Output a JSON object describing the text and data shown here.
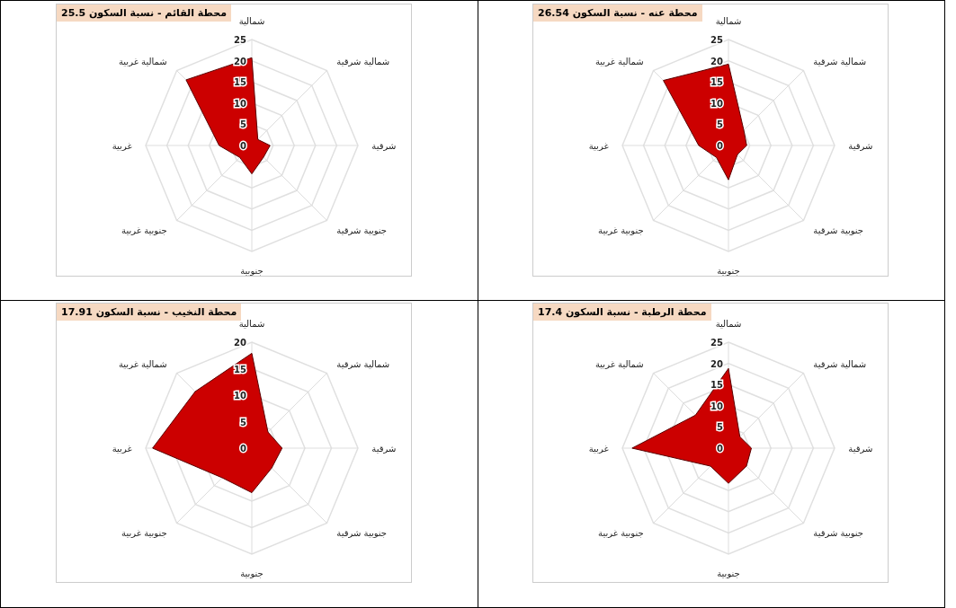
{
  "chart_data": [
    {
      "type": "radar",
      "title": "محطة القائم - نسبة السكون 25.5",
      "categories": [
        "شمالية",
        "شمالية شرقية",
        "شرقية",
        "جنوبية شرقية",
        "جنوبية",
        "جنوبية غربية",
        "غربية",
        "شمالية غربية"
      ],
      "ylim": [
        0,
        25
      ],
      "yticks": [
        0,
        5,
        10,
        15,
        20,
        25
      ],
      "grid": true,
      "series": [
        {
          "color": "#cc0000",
          "values": [
            20.7,
            2,
            4.3,
            3.9,
            6.7,
            4,
            7.7,
            21.9
          ]
        }
      ]
    },
    {
      "type": "radar",
      "title": "محطة عنه - نسبة السكون 26.54",
      "categories": [
        "شمالية",
        "شمالية شرقية",
        "شرقية",
        "جنوبية شرقية",
        "جنوبية",
        "جنوبية غربية",
        "غربية",
        "شمالية غربية"
      ],
      "ylim": [
        0,
        25
      ],
      "yticks": [
        0,
        5,
        10,
        15,
        20,
        25
      ],
      "grid": true,
      "series": [
        {
          "color": "#cc0000",
          "values": [
            19.2,
            5.1,
            4.3,
            3,
            8.1,
            4,
            7,
            21.7
          ]
        }
      ]
    },
    {
      "type": "radar",
      "title": "محطة النخيب - نسبة السكون 17.91",
      "categories": [
        "شمالية",
        "شمالية شرقية",
        "شرقية",
        "جنوبية شرقية",
        "جنوبية",
        "جنوبية غربية",
        "غربية",
        "شمالية غربية"
      ],
      "ylim": [
        0,
        20
      ],
      "yticks": [
        0,
        5,
        10,
        15,
        20
      ],
      "grid": true,
      "series": [
        {
          "color": "#cc0000",
          "values": [
            17.9,
            4.3,
            5.7,
            5.3,
            8.4,
            7.9,
            18.7,
            15.1
          ]
        }
      ]
    },
    {
      "type": "radar",
      "title": "محطة الرطبة - نسبة السكون 17.4",
      "categories": [
        "شمالية",
        "شمالية شرقية",
        "شرقية",
        "جنوبية شرقية",
        "جنوبية",
        "جنوبية غربية",
        "غربية",
        "شمالية غربية"
      ],
      "ylim": [
        0,
        25
      ],
      "yticks": [
        0,
        5,
        10,
        15,
        20,
        25
      ],
      "grid": true,
      "series": [
        {
          "color": "#cc0000",
          "values": [
            18.8,
            3.8,
            5.4,
            6,
            8.3,
            6,
            22.7,
            11
          ]
        }
      ]
    }
  ]
}
